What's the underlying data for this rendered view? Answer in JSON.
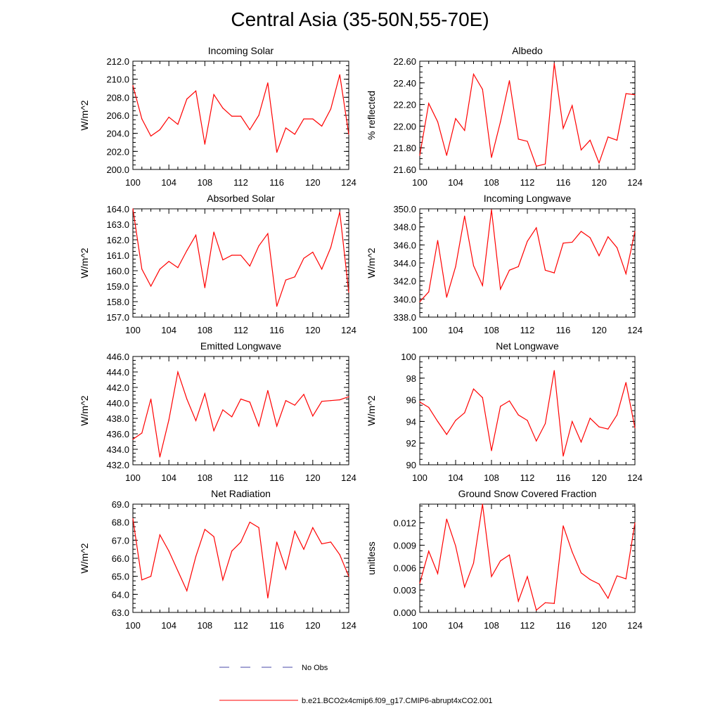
{
  "figure": {
    "title": "Central Asia (35-50N,55-70E)"
  },
  "legend": [
    {
      "label": "No Obs",
      "color": "#4a4aa8",
      "style": "dashed"
    },
    {
      "label": "b.e21.BCO2x4cmip6.f09_g17.CMIP6-abrupt4xCO2.001",
      "color": "#ff0000",
      "style": "solid"
    }
  ],
  "chart_data": [
    {
      "type": "line",
      "title": "Incoming Solar",
      "xlabel": "",
      "ylabel": "W/m^2",
      "xlim": [
        100,
        124
      ],
      "xticks": [
        "100",
        "104",
        "108",
        "112",
        "116",
        "120",
        "124"
      ],
      "ylim": [
        200,
        212
      ],
      "yticks": [
        "200.0",
        "202.0",
        "204.0",
        "206.0",
        "208.0",
        "210.0",
        "212.0"
      ],
      "x": [
        100,
        101,
        102,
        103,
        104,
        105,
        106,
        107,
        108,
        109,
        110,
        111,
        112,
        113,
        114,
        115,
        116,
        117,
        118,
        119,
        120,
        121,
        122,
        123,
        124
      ],
      "series": [
        {
          "name": "b.e21.BCO2x4cmip6.f09_g17.CMIP6-abrupt4xCO2.001",
          "color": "#ff0000",
          "values": [
            209.3,
            205.6,
            203.7,
            204.4,
            205.8,
            205.0,
            207.8,
            208.7,
            202.8,
            208.3,
            206.8,
            205.9,
            205.9,
            204.4,
            206.0,
            209.6,
            201.9,
            204.6,
            203.9,
            205.6,
            205.6,
            204.8,
            206.7,
            210.5,
            203.9
          ]
        }
      ]
    },
    {
      "type": "line",
      "title": "Albedo",
      "xlabel": "",
      "ylabel": "% reflected",
      "xlim": [
        100,
        124
      ],
      "xticks": [
        "100",
        "104",
        "108",
        "112",
        "116",
        "120",
        "124"
      ],
      "ylim": [
        21.6,
        22.6
      ],
      "yticks": [
        "21.60",
        "21.80",
        "22.00",
        "22.20",
        "22.40",
        "22.60"
      ],
      "x": [
        100,
        101,
        102,
        103,
        104,
        105,
        106,
        107,
        108,
        109,
        110,
        111,
        112,
        113,
        114,
        115,
        116,
        117,
        118,
        119,
        120,
        121,
        122,
        123,
        124
      ],
      "series": [
        {
          "name": "b.e21.BCO2x4cmip6.f09_g17.CMIP6-abrupt4xCO2.001",
          "color": "#ff0000",
          "values": [
            21.73,
            22.21,
            22.04,
            21.73,
            22.07,
            21.96,
            22.48,
            22.34,
            21.71,
            22.04,
            22.42,
            21.88,
            21.86,
            21.63,
            21.65,
            22.58,
            21.98,
            22.19,
            21.78,
            21.87,
            21.66,
            21.9,
            21.87,
            22.3,
            22.29
          ]
        }
      ]
    },
    {
      "type": "line",
      "title": "Absorbed Solar",
      "xlabel": "",
      "ylabel": "W/m^2",
      "xlim": [
        100,
        124
      ],
      "xticks": [
        "100",
        "104",
        "108",
        "112",
        "116",
        "120",
        "124"
      ],
      "ylim": [
        157,
        164
      ],
      "yticks": [
        "157.0",
        "158.0",
        "159.0",
        "160.0",
        "161.0",
        "162.0",
        "163.0",
        "164.0"
      ],
      "x": [
        100,
        101,
        102,
        103,
        104,
        105,
        106,
        107,
        108,
        109,
        110,
        111,
        112,
        113,
        114,
        115,
        116,
        117,
        118,
        119,
        120,
        121,
        122,
        123,
        124
      ],
      "series": [
        {
          "name": "b.e21.BCO2x4cmip6.f09_g17.CMIP6-abrupt4xCO2.001",
          "color": "#ff0000",
          "values": [
            164.0,
            160.1,
            159.0,
            160.1,
            160.6,
            160.2,
            161.3,
            162.3,
            158.9,
            162.5,
            160.7,
            161.0,
            161.0,
            160.3,
            161.6,
            162.4,
            157.7,
            159.4,
            159.6,
            160.8,
            161.2,
            160.1,
            161.5,
            163.8,
            158.6
          ]
        }
      ]
    },
    {
      "type": "line",
      "title": "Incoming Longwave",
      "xlabel": "",
      "ylabel": "W/m^2",
      "xlim": [
        100,
        124
      ],
      "xticks": [
        "100",
        "104",
        "108",
        "112",
        "116",
        "120",
        "124"
      ],
      "ylim": [
        338,
        350
      ],
      "yticks": [
        "338.0",
        "340.0",
        "342.0",
        "344.0",
        "346.0",
        "348.0",
        "350.0"
      ],
      "x": [
        100,
        101,
        102,
        103,
        104,
        105,
        106,
        107,
        108,
        109,
        110,
        111,
        112,
        113,
        114,
        115,
        116,
        117,
        118,
        119,
        120,
        121,
        122,
        123,
        124
      ],
      "series": [
        {
          "name": "b.e21.BCO2x4cmip6.f09_g17.CMIP6-abrupt4xCO2.001",
          "color": "#ff0000",
          "values": [
            339.7,
            340.8,
            346.5,
            340.2,
            343.6,
            349.2,
            343.7,
            341.5,
            349.9,
            341.1,
            343.2,
            343.6,
            346.4,
            347.9,
            343.2,
            342.9,
            346.2,
            346.3,
            347.5,
            346.8,
            344.8,
            346.9,
            345.7,
            342.8,
            347.5
          ]
        }
      ]
    },
    {
      "type": "line",
      "title": "Emitted Longwave",
      "xlabel": "",
      "ylabel": "W/m^2",
      "xlim": [
        100,
        124
      ],
      "xticks": [
        "100",
        "104",
        "108",
        "112",
        "116",
        "120",
        "124"
      ],
      "ylim": [
        432,
        446
      ],
      "yticks": [
        "432.0",
        "434.0",
        "436.0",
        "438.0",
        "440.0",
        "442.0",
        "444.0",
        "446.0"
      ],
      "x": [
        100,
        101,
        102,
        103,
        104,
        105,
        106,
        107,
        108,
        109,
        110,
        111,
        112,
        113,
        114,
        115,
        116,
        117,
        118,
        119,
        120,
        121,
        122,
        123,
        124
      ],
      "series": [
        {
          "name": "b.e21.BCO2x4cmip6.f09_g17.CMIP6-abrupt4xCO2.001",
          "color": "#ff0000",
          "values": [
            435.3,
            436.1,
            440.5,
            433.0,
            437.8,
            444.0,
            440.5,
            437.7,
            441.2,
            436.4,
            439.1,
            438.2,
            440.5,
            440.1,
            437.0,
            441.6,
            437.0,
            440.3,
            439.7,
            441.1,
            438.3,
            440.2,
            440.3,
            440.4,
            440.8
          ]
        }
      ]
    },
    {
      "type": "line",
      "title": "Net Longwave",
      "xlabel": "",
      "ylabel": "W/m^2",
      "xlim": [
        100,
        124
      ],
      "xticks": [
        "100",
        "104",
        "108",
        "112",
        "116",
        "120",
        "124"
      ],
      "ylim": [
        90,
        100
      ],
      "yticks": [
        "90",
        "92",
        "94",
        "96",
        "98",
        "100"
      ],
      "x": [
        100,
        101,
        102,
        103,
        104,
        105,
        106,
        107,
        108,
        109,
        110,
        111,
        112,
        113,
        114,
        115,
        116,
        117,
        118,
        119,
        120,
        121,
        122,
        123,
        124
      ],
      "series": [
        {
          "name": "b.e21.BCO2x4cmip6.f09_g17.CMIP6-abrupt4xCO2.001",
          "color": "#ff0000",
          "values": [
            95.8,
            95.3,
            94.0,
            92.8,
            94.1,
            94.8,
            97.0,
            96.2,
            91.3,
            95.4,
            95.9,
            94.6,
            94.1,
            92.2,
            93.8,
            98.7,
            90.8,
            94.0,
            92.1,
            94.3,
            93.5,
            93.3,
            94.6,
            97.6,
            93.4
          ]
        }
      ]
    },
    {
      "type": "line",
      "title": "Net Radiation",
      "xlabel": "",
      "ylabel": "W/m^2",
      "xlim": [
        100,
        124
      ],
      "xticks": [
        "100",
        "104",
        "108",
        "112",
        "116",
        "120",
        "124"
      ],
      "ylim": [
        63,
        69
      ],
      "yticks": [
        "63.0",
        "64.0",
        "65.0",
        "66.0",
        "67.0",
        "68.0",
        "69.0"
      ],
      "x": [
        100,
        101,
        102,
        103,
        104,
        105,
        106,
        107,
        108,
        109,
        110,
        111,
        112,
        113,
        114,
        115,
        116,
        117,
        118,
        119,
        120,
        121,
        122,
        123,
        124
      ],
      "series": [
        {
          "name": "b.e21.BCO2x4cmip6.f09_g17.CMIP6-abrupt4xCO2.001",
          "color": "#ff0000",
          "values": [
            68.2,
            64.8,
            65.0,
            67.3,
            66.4,
            65.3,
            64.2,
            66.1,
            67.6,
            67.2,
            64.8,
            66.4,
            66.9,
            68.0,
            67.7,
            63.8,
            66.9,
            65.4,
            67.5,
            66.5,
            67.7,
            66.8,
            66.9,
            66.2,
            65.0
          ]
        }
      ]
    },
    {
      "type": "line",
      "title": "Ground Snow Covered Fraction",
      "xlabel": "",
      "ylabel": "unitless",
      "xlim": [
        100,
        124
      ],
      "xticks": [
        "100",
        "104",
        "108",
        "112",
        "116",
        "120",
        "124"
      ],
      "ylim": [
        0,
        0.0145
      ],
      "yticks": [
        "0.000",
        "0.003",
        "0.006",
        "0.009",
        "0.012"
      ],
      "x": [
        100,
        101,
        102,
        103,
        104,
        105,
        106,
        107,
        108,
        109,
        110,
        111,
        112,
        113,
        114,
        115,
        116,
        117,
        118,
        119,
        120,
        121,
        122,
        123,
        124
      ],
      "series": [
        {
          "name": "b.e21.BCO2x4cmip6.f09_g17.CMIP6-abrupt4xCO2.001",
          "color": "#ff0000",
          "values": [
            0.0039,
            0.0082,
            0.0052,
            0.0125,
            0.0089,
            0.0034,
            0.0066,
            0.0145,
            0.0048,
            0.0069,
            0.0077,
            0.0015,
            0.0048,
            0.0003,
            0.0013,
            0.0012,
            0.0116,
            0.0081,
            0.0053,
            0.0044,
            0.0038,
            0.0019,
            0.0049,
            0.0045,
            0.012
          ]
        }
      ]
    }
  ]
}
